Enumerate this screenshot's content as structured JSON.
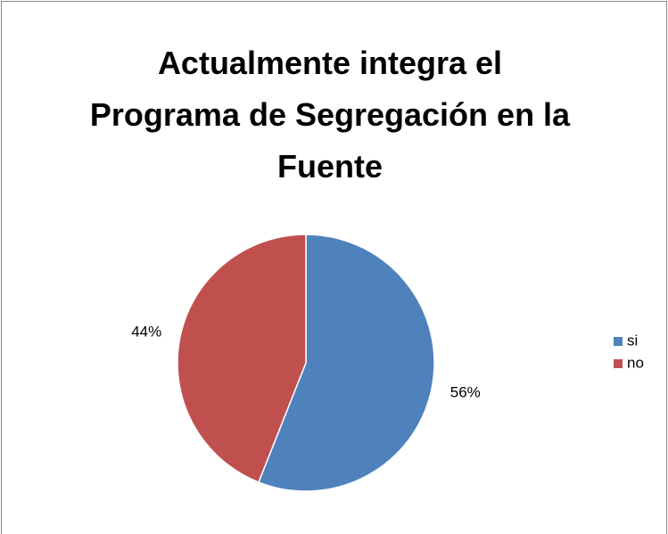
{
  "chart_data": {
    "type": "pie",
    "title": "Actualmente integra el Programa de Segregación en la Fuente",
    "categories": [
      "si",
      "no"
    ],
    "values": [
      56,
      44
    ],
    "value_labels": [
      "56%",
      "44%"
    ],
    "colors": [
      "#4f81bd",
      "#c0504d"
    ],
    "legend": "right"
  }
}
